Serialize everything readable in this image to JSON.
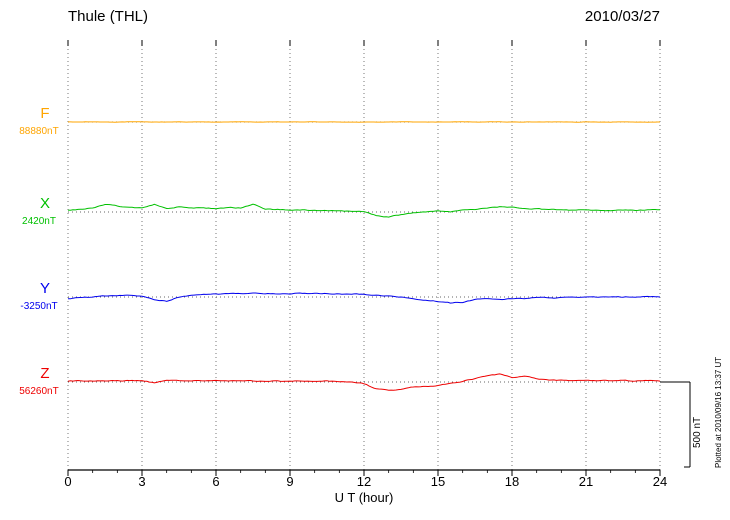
{
  "header": {
    "title": "Thule (THL)",
    "date": "2010/03/27"
  },
  "xaxis": {
    "label": "U T (hour)",
    "ticks": [
      0,
      3,
      6,
      9,
      12,
      15,
      18,
      21,
      24
    ],
    "min": 0,
    "max": 24
  },
  "scale_bar": {
    "label": "500 nT",
    "nT": 500
  },
  "footnote": "Plotted at 2010/09/16 13:37 UT",
  "chart_data": {
    "type": "line",
    "title": "Thule (THL) magnetogram",
    "date": "2010/03/27",
    "xlabel": "U T (hour)",
    "x_range": [
      0,
      24
    ],
    "grid": "dotted-vertical-every-3h",
    "scale_nT_per_div": 500,
    "x_hours": [
      0,
      0.5,
      1,
      1.5,
      2,
      2.5,
      3,
      3.5,
      4,
      4.5,
      5,
      5.5,
      6,
      6.5,
      7,
      7.5,
      8,
      8.5,
      9,
      9.5,
      10,
      10.5,
      11,
      11.5,
      12,
      12.5,
      13,
      13.5,
      14,
      14.5,
      15,
      15.5,
      16,
      16.5,
      17,
      17.5,
      18,
      18.5,
      19,
      19.5,
      20,
      20.5,
      21,
      21.5,
      22,
      22.5,
      23,
      23.5,
      24
    ],
    "series": [
      {
        "name": "F",
        "color": "#FFA500",
        "value_label": "88880nT",
        "baseline_nT": 88880,
        "noise_nT": 1.5,
        "offsets_nT": [
          0,
          0,
          1,
          0,
          0,
          1,
          0,
          0,
          0,
          1,
          0,
          0,
          0,
          0,
          1,
          0,
          0,
          0,
          0,
          0,
          1,
          0,
          0,
          0,
          -1,
          0,
          0,
          1,
          0,
          0,
          0,
          0,
          1,
          0,
          0,
          1,
          0,
          0,
          0,
          0,
          1,
          0,
          0,
          0,
          0,
          1,
          0,
          0,
          0
        ]
      },
      {
        "name": "X",
        "color": "#00C000",
        "value_label": "2420nT",
        "baseline_nT": 2420,
        "noise_nT": 5,
        "offsets_nT": [
          10,
          15,
          25,
          45,
          35,
          25,
          25,
          45,
          20,
          30,
          25,
          25,
          20,
          25,
          25,
          45,
          15,
          15,
          12,
          12,
          10,
          10,
          8,
          5,
          0,
          -20,
          -30,
          -15,
          -5,
          0,
          5,
          0,
          10,
          15,
          25,
          30,
          28,
          20,
          18,
          15,
          15,
          12,
          10,
          10,
          8,
          10,
          10,
          12,
          15
        ]
      },
      {
        "name": "Y",
        "color": "#0000EE",
        "value_label": "-3250nT",
        "baseline_nT": -3250,
        "noise_nT": 5,
        "offsets_nT": [
          -10,
          -5,
          0,
          5,
          8,
          10,
          5,
          -15,
          -25,
          0,
          10,
          15,
          18,
          20,
          20,
          22,
          20,
          20,
          20,
          22,
          20,
          20,
          18,
          18,
          15,
          10,
          5,
          0,
          -10,
          -20,
          -25,
          -35,
          -30,
          -15,
          -10,
          -15,
          -10,
          -8,
          -5,
          -5,
          -5,
          -3,
          -3,
          0,
          0,
          0,
          0,
          2,
          2
        ]
      },
      {
        "name": "Z",
        "color": "#EE0000",
        "value_label": "56260nT",
        "baseline_nT": 56260,
        "noise_nT": 5,
        "offsets_nT": [
          5,
          8,
          8,
          8,
          8,
          8,
          8,
          -5,
          10,
          8,
          8,
          8,
          8,
          6,
          6,
          6,
          5,
          5,
          5,
          5,
          5,
          5,
          3,
          0,
          -10,
          -40,
          -50,
          -45,
          -30,
          -25,
          -20,
          -10,
          5,
          20,
          35,
          45,
          25,
          35,
          20,
          10,
          10,
          8,
          10,
          8,
          8,
          10,
          5,
          8,
          5
        ]
      }
    ]
  }
}
